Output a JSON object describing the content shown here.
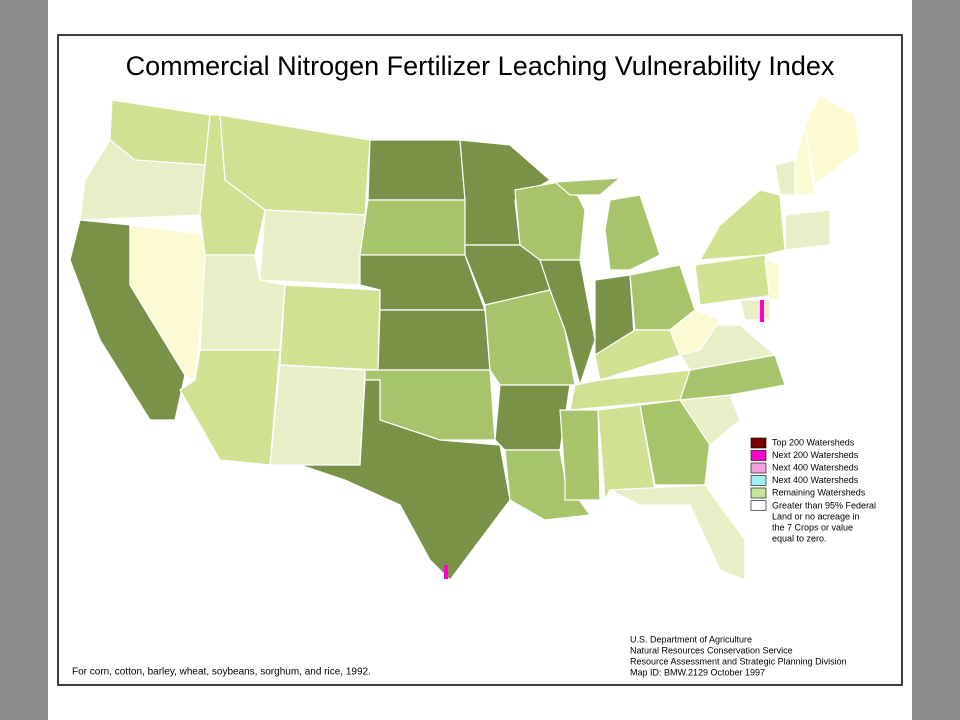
{
  "title": "Commercial Nitrogen Fertilizer Leaching Vulnerability Index",
  "legend": [
    {
      "label": "Top 200 Watersheds",
      "color": "#7a0000"
    },
    {
      "label": "Next 200 Watersheds",
      "color": "#ff00cc"
    },
    {
      "label": "Next 400 Watersheds",
      "color": "#f5a0e0"
    },
    {
      "label": "Next 400 Watersheds",
      "color": "#a0f0f0"
    },
    {
      "label": "Remaining Watersheds",
      "color": "#c8e6a0"
    },
    {
      "label": "Greater than 95% Federal Land or no acreage in the 7 Crops or value equal to zero.",
      "color": "#ffffff"
    }
  ],
  "footnote": "For corn, cotton, barley, wheat, soybeans, sorghum, and rice, 1992.",
  "credits": [
    "U.S. Department of Agriculture",
    "Natural Resources Conservation Service",
    "Resource Assessment and Strategic Planning Division",
    "Map ID: BMW.2129     October 1997"
  ]
}
